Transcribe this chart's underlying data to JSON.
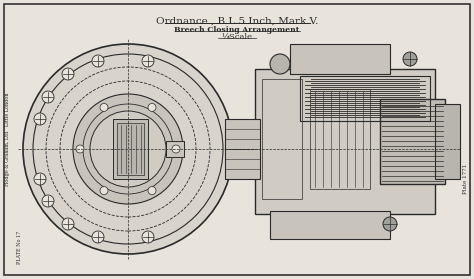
{
  "title_line1": "Ordnance , B.L.5 Inch, Mark V.",
  "title_line2": "Breech Closing Arrangement",
  "title_line3": "¼Scale",
  "bg_color": "#e8e4dc",
  "line_color": "#2a2a2a",
  "border_color": "#333333",
  "fig_width": 4.74,
  "fig_height": 2.79,
  "left_text": "Hodge & Graham, Ltd   Little London",
  "bottom_left_text": "PLATE No 17",
  "right_text": "Plate 1771",
  "dpi": 100
}
